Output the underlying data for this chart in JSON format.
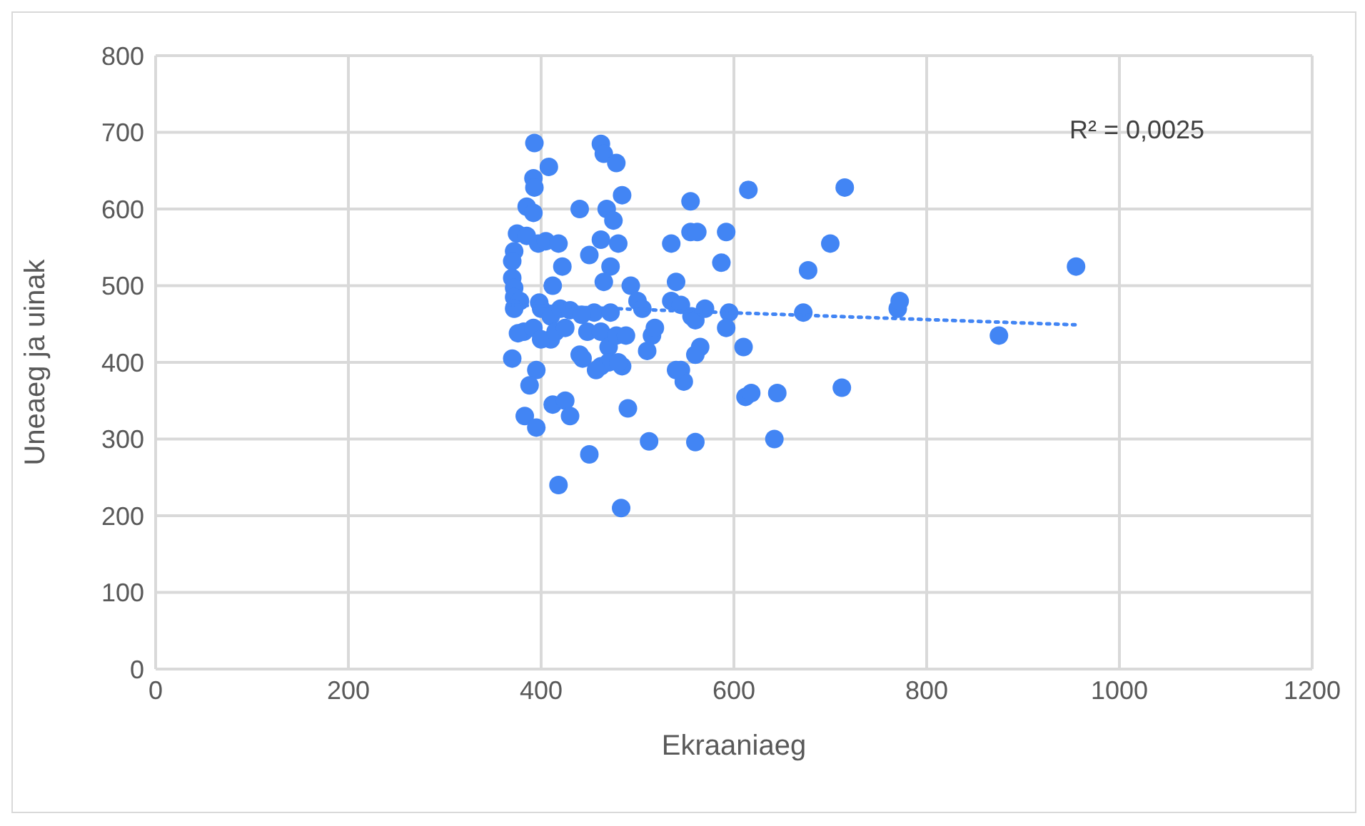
{
  "chart_data": {
    "type": "scatter",
    "xlabel": "Ekraaniaeg",
    "ylabel": "Uneaeg ja uinak",
    "xlim": [
      0,
      1200
    ],
    "xticks": [
      0,
      200,
      400,
      600,
      800,
      1000,
      1200
    ],
    "ylim": [
      0,
      800
    ],
    "yticks": [
      0,
      100,
      200,
      300,
      400,
      500,
      600,
      700,
      800
    ],
    "grid": true,
    "marker": "circle",
    "annotations": [
      "R² = 0,0025"
    ],
    "series": [
      {
        "color": "#4285f4",
        "x": [
          393,
          408,
          392,
          393,
          385,
          392,
          375,
          385,
          372,
          370,
          397,
          405,
          370,
          372,
          372,
          378,
          372,
          382,
          376,
          392,
          398,
          400,
          410,
          410,
          400,
          415,
          420,
          412,
          422,
          418,
          430,
          425,
          395,
          388,
          370,
          383,
          395,
          412,
          425,
          430,
          418,
          450,
          483,
          490,
          462,
          465,
          478,
          484,
          468,
          475,
          440,
          450,
          462,
          472,
          465,
          455,
          442,
          448,
          462,
          472,
          470,
          440,
          443,
          462,
          470,
          484,
          478,
          488,
          493,
          500,
          505,
          510,
          515,
          518,
          512,
          480,
          480,
          457,
          535,
          540,
          535,
          545,
          545,
          548,
          540,
          555,
          555,
          562,
          556,
          560,
          565,
          570,
          560,
          560,
          587,
          592,
          595,
          592,
          615,
          610,
          612,
          618,
          645,
          642,
          672,
          677,
          700,
          712,
          715,
          770,
          772,
          875,
          955
        ],
        "values": [
          686,
          655,
          640,
          628,
          603,
          595,
          568,
          565,
          545,
          532,
          555,
          558,
          510,
          497,
          485,
          480,
          470,
          440,
          438,
          445,
          478,
          470,
          460,
          430,
          430,
          440,
          470,
          500,
          525,
          555,
          468,
          445,
          390,
          370,
          405,
          330,
          315,
          345,
          350,
          330,
          240,
          280,
          210,
          340,
          685,
          672,
          660,
          618,
          600,
          585,
          600,
          540,
          560,
          525,
          505,
          465,
          462,
          440,
          440,
          465,
          420,
          410,
          405,
          395,
          400,
          395,
          435,
          435,
          500,
          480,
          470,
          415,
          435,
          445,
          297,
          555,
          400,
          390,
          555,
          505,
          480,
          475,
          390,
          375,
          390,
          610,
          570,
          570,
          460,
          455,
          420,
          470,
          410,
          296,
          530,
          570,
          465,
          445,
          625,
          420,
          355,
          360,
          360,
          300,
          465,
          520,
          555,
          367,
          628,
          470,
          480,
          435,
          525
        ]
      },
      {
        "type": "line",
        "color": "#4285f4",
        "marker": "none",
        "line_style": "dotted",
        "x": [
          365,
          954
        ],
        "values": [
          475,
          449
        ]
      }
    ]
  }
}
